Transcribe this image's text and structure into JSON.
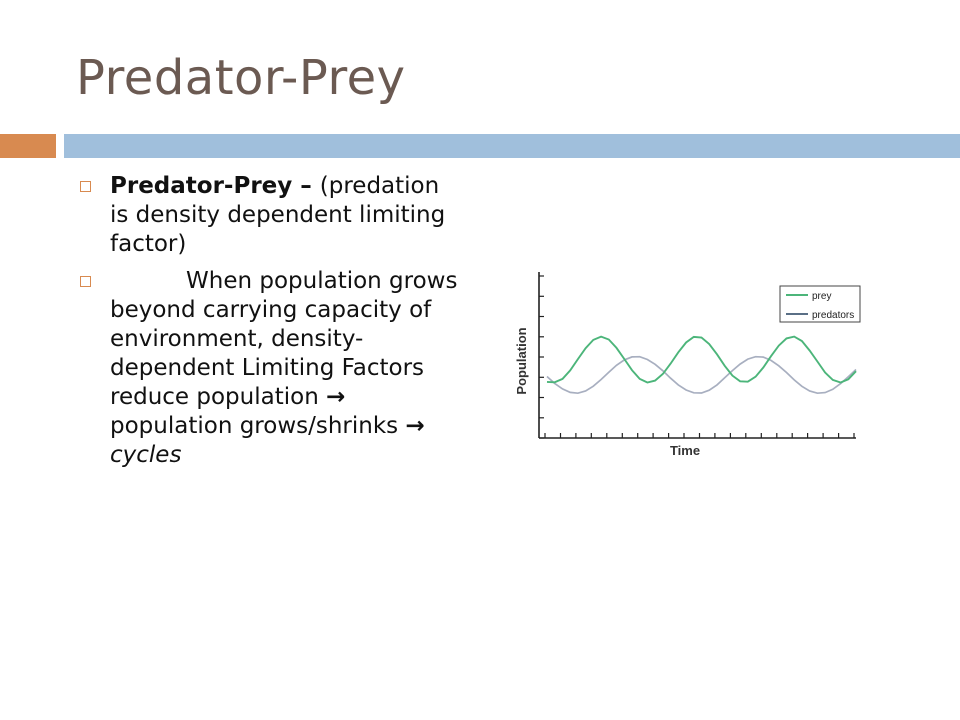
{
  "slide": {
    "title": "Predator-Prey"
  },
  "bullets": [
    {
      "term": "Predator-Prey",
      "dash": " – ",
      "text": "(predation is density dependent limiting factor)"
    },
    {
      "line_a": "When population grows beyond carrying capacity of environment, density-dependent Limiting Factors reduce population",
      "arrow_1": "→",
      "line_b": "population grows/shrinks",
      "arrow_2": "→",
      "end_word": "cycles"
    }
  ],
  "colors": {
    "title": "#6b5a52",
    "accent_orange": "#d88a50",
    "accent_blue": "#a0bfdc",
    "prey_line": "#4cb57a",
    "predator_line": "#a8afc0"
  },
  "chart_data": {
    "type": "line",
    "xlabel": "Time",
    "ylabel": "Population",
    "legend_position": "top-right",
    "x": [
      0,
      1,
      2,
      3,
      4,
      5,
      6,
      7,
      8,
      9,
      10,
      11,
      12,
      13,
      14,
      15,
      16,
      17,
      18,
      19,
      20,
      21,
      22,
      23,
      24,
      25,
      26,
      27,
      28,
      29,
      30,
      31,
      32,
      33,
      34,
      35,
      36,
      37,
      38,
      39,
      40
    ],
    "series": [
      {
        "name": "prey",
        "values": [
          3.6,
          3.58,
          3.76,
          4.22,
          4.83,
          5.42,
          5.87,
          6.05,
          5.89,
          5.44,
          4.84,
          4.23,
          3.76,
          3.57,
          3.67,
          4.03,
          4.59,
          5.2,
          5.73,
          6.03,
          6.0,
          5.65,
          5.09,
          4.47,
          3.94,
          3.63,
          3.61,
          3.88,
          4.38,
          4.99,
          5.56,
          5.95,
          6.05,
          5.81,
          5.3,
          4.7,
          4.11,
          3.71,
          3.57,
          3.74,
          4.18
        ]
      },
      {
        "name": "predators",
        "values": [
          3.89,
          3.52,
          3.22,
          3.03,
          2.99,
          3.11,
          3.37,
          3.73,
          4.12,
          4.5,
          4.79,
          4.95,
          4.96,
          4.81,
          4.55,
          4.2,
          3.8,
          3.44,
          3.16,
          3.01,
          3.0,
          3.15,
          3.44,
          3.82,
          4.21,
          4.56,
          4.83,
          4.96,
          4.94,
          4.76,
          4.47,
          4.11,
          3.71,
          3.36,
          3.11,
          2.99,
          3.02,
          3.2,
          3.51,
          3.88,
          4.27
        ]
      }
    ],
    "ylim": [
      1,
      9
    ],
    "grid": false
  }
}
